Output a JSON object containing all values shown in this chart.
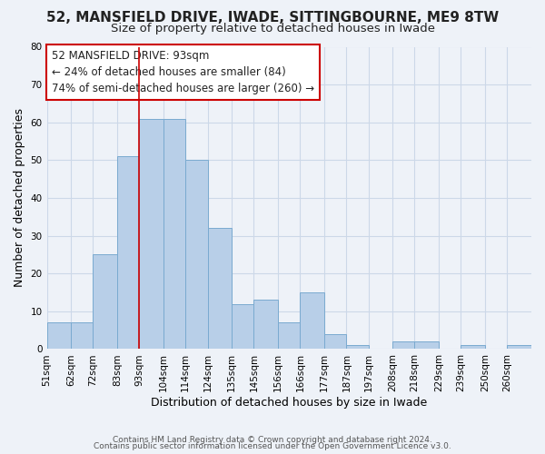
{
  "title": "52, MANSFIELD DRIVE, IWADE, SITTINGBOURNE, ME9 8TW",
  "subtitle": "Size of property relative to detached houses in Iwade",
  "xlabel": "Distribution of detached houses by size in Iwade",
  "ylabel": "Number of detached properties",
  "bin_labels": [
    "51sqm",
    "62sqm",
    "72sqm",
    "83sqm",
    "93sqm",
    "104sqm",
    "114sqm",
    "124sqm",
    "135sqm",
    "145sqm",
    "156sqm",
    "166sqm",
    "177sqm",
    "187sqm",
    "197sqm",
    "208sqm",
    "218sqm",
    "229sqm",
    "239sqm",
    "250sqm",
    "260sqm"
  ],
  "bin_edges": [
    51,
    62,
    72,
    83,
    93,
    104,
    114,
    124,
    135,
    145,
    156,
    166,
    177,
    187,
    197,
    208,
    218,
    229,
    239,
    250,
    260,
    271
  ],
  "counts": [
    7,
    7,
    25,
    51,
    61,
    61,
    50,
    32,
    12,
    13,
    7,
    15,
    4,
    1,
    0,
    2,
    2,
    0,
    1,
    0,
    1
  ],
  "bar_color": "#b8cfe8",
  "bar_edge_color": "#7aaad0",
  "vline_x": 93,
  "vline_color": "#cc0000",
  "annotation_lines": [
    "52 MANSFIELD DRIVE: 93sqm",
    "← 24% of detached houses are smaller (84)",
    "74% of semi-detached houses are larger (260) →"
  ],
  "ylim": [
    0,
    80
  ],
  "yticks": [
    0,
    10,
    20,
    30,
    40,
    50,
    60,
    70,
    80
  ],
  "footer_line1": "Contains HM Land Registry data © Crown copyright and database right 2024.",
  "footer_line2": "Contains public sector information licensed under the Open Government Licence v3.0.",
  "title_fontsize": 11,
  "subtitle_fontsize": 9.5,
  "axis_label_fontsize": 9,
  "tick_fontsize": 7.5,
  "annotation_fontsize": 8.5,
  "footer_fontsize": 6.5,
  "grid_color": "#ccd8e8",
  "background_color": "#eef2f8"
}
